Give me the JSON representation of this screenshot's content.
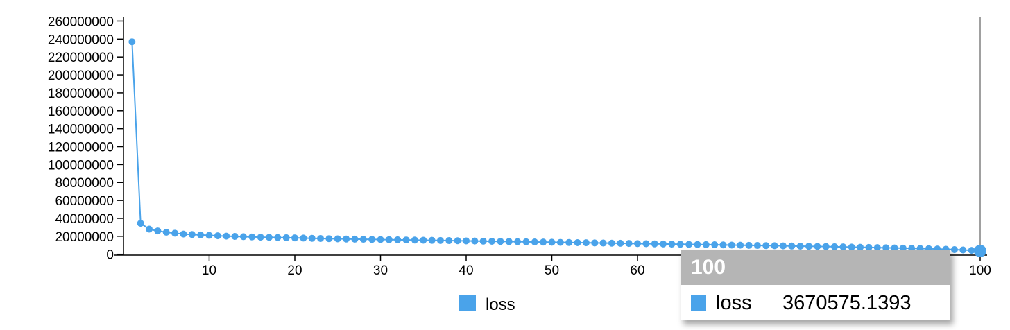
{
  "colors": {
    "series": "#4aa3ea",
    "hover_line": "#a0a0a0",
    "tooltip_header": "#b5b5b5"
  },
  "chart_data": {
    "type": "line",
    "xlabel": "",
    "ylabel": "",
    "xlim": [
      0,
      100
    ],
    "ylim": [
      -1000000,
      265000000
    ],
    "x_ticks": [
      10,
      20,
      30,
      40,
      50,
      60,
      70,
      80,
      90,
      100
    ],
    "y_ticks": [
      0,
      20000000,
      40000000,
      60000000,
      80000000,
      100000000,
      120000000,
      140000000,
      160000000,
      180000000,
      200000000,
      220000000,
      240000000,
      260000000
    ],
    "legend_position": "bottom-center",
    "grid": false,
    "series": [
      {
        "name": "loss",
        "color": "#4aa3ea",
        "x": [
          1,
          2,
          3,
          4,
          5,
          6,
          7,
          8,
          9,
          10,
          11,
          12,
          13,
          14,
          15,
          16,
          17,
          18,
          19,
          20,
          21,
          22,
          23,
          24,
          25,
          26,
          27,
          28,
          29,
          30,
          31,
          32,
          33,
          34,
          35,
          36,
          37,
          38,
          39,
          40,
          41,
          42,
          43,
          44,
          45,
          46,
          47,
          48,
          49,
          50,
          51,
          52,
          53,
          54,
          55,
          56,
          57,
          58,
          59,
          60,
          61,
          62,
          63,
          64,
          65,
          66,
          67,
          68,
          69,
          70,
          71,
          72,
          73,
          74,
          75,
          76,
          77,
          78,
          79,
          80,
          81,
          82,
          83,
          84,
          85,
          86,
          87,
          88,
          89,
          90,
          91,
          92,
          93,
          94,
          95,
          96,
          97,
          98,
          99,
          100
        ],
        "values": [
          237000000,
          34500000,
          28000000,
          26000000,
          24500000,
          23500000,
          22500000,
          22000000,
          21500000,
          21000000,
          20600000,
          20200000,
          19900000,
          19600000,
          19300000,
          19000000,
          18800000,
          18600000,
          18400000,
          18200000,
          18000000,
          17800000,
          17600000,
          17400000,
          17200000,
          17000000,
          16850000,
          16700000,
          16550000,
          16400000,
          16250000,
          16100000,
          15950000,
          15800000,
          15650000,
          15500000,
          15350000,
          15200000,
          15050000,
          14900000,
          14750000,
          14600000,
          14450000,
          14300000,
          14150000,
          14000000,
          13850000,
          13700000,
          13550000,
          13400000,
          13250000,
          13100000,
          12950000,
          12800000,
          12650000,
          12500000,
          12350000,
          12200000,
          12050000,
          11900000,
          11750000,
          11600000,
          11450000,
          11300000,
          11150000,
          11000000,
          10850000,
          10700000,
          10550000,
          10400000,
          10250000,
          10100000,
          9950000,
          9800000,
          9650000,
          9500000,
          9350000,
          9200000,
          9050000,
          8900000,
          8750000,
          8600000,
          8400000,
          8200000,
          8000000,
          7800000,
          7600000,
          7400000,
          7200000,
          7000000,
          6800000,
          6600000,
          6400000,
          6200000,
          5900000,
          5600000,
          5200000,
          4800000,
          4300000,
          3670575.1393
        ]
      }
    ],
    "hover": {
      "x": 100,
      "x_label": "100",
      "series_name": "loss",
      "value_label": "3670575.1393"
    }
  }
}
